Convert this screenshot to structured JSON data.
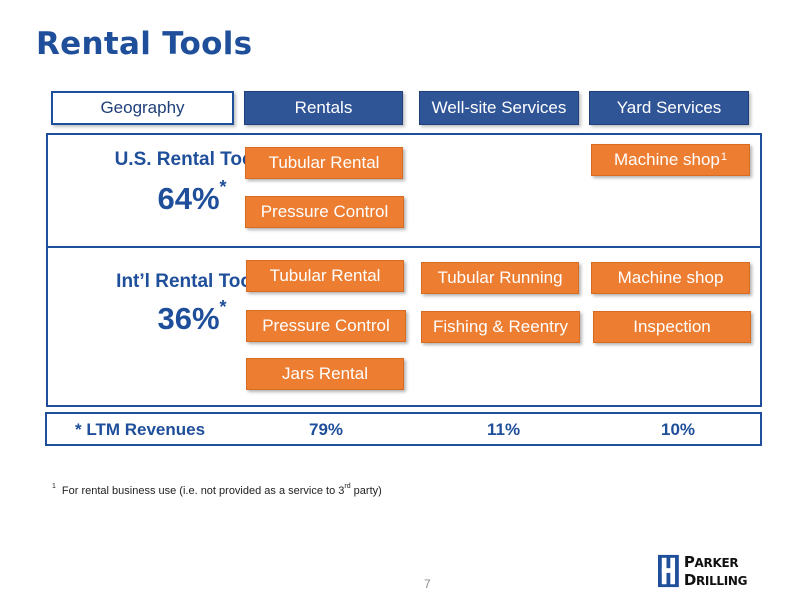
{
  "title": "Rental Tools",
  "headers": {
    "geography": "Geography",
    "rentals": "Rentals",
    "wellsite": "Well-site Services",
    "yard": "Yard Services"
  },
  "us": {
    "name": "U.S. Rental Tools",
    "pct": "64%",
    "star": "*",
    "rentals": [
      "Tubular Rental",
      "Pressure Control"
    ],
    "yard": {
      "label": "Machine shop",
      "sup": "1"
    }
  },
  "intl": {
    "name": "Int’l Rental Tools",
    "pct": "36%",
    "star": "*",
    "rentals": [
      "Tubular Rental",
      "Pressure Control",
      "Jars Rental"
    ],
    "wellsite": [
      "Tubular Running",
      "Fishing & Reentry"
    ],
    "yard": [
      "Machine shop",
      "Inspection"
    ]
  },
  "ltm": {
    "label": "* LTM Revenues",
    "rentals": "79%",
    "wellsite": "11%",
    "yard": "10%"
  },
  "footnote": {
    "num": "1",
    "text_a": "For rental business use (i.e. not provided as a service to 3",
    "sup": "rd",
    "text_b": " party)"
  },
  "page_number": "7",
  "logo": {
    "word1_first": "P",
    "word1_rest": "ARKER",
    "word2_first": "D",
    "word2_rest": "RILLING"
  },
  "colors": {
    "title": "#1f4e9a",
    "header_fill": "#2f5597",
    "box_fill": "#ed7d31",
    "border": "#1f4e9a"
  }
}
